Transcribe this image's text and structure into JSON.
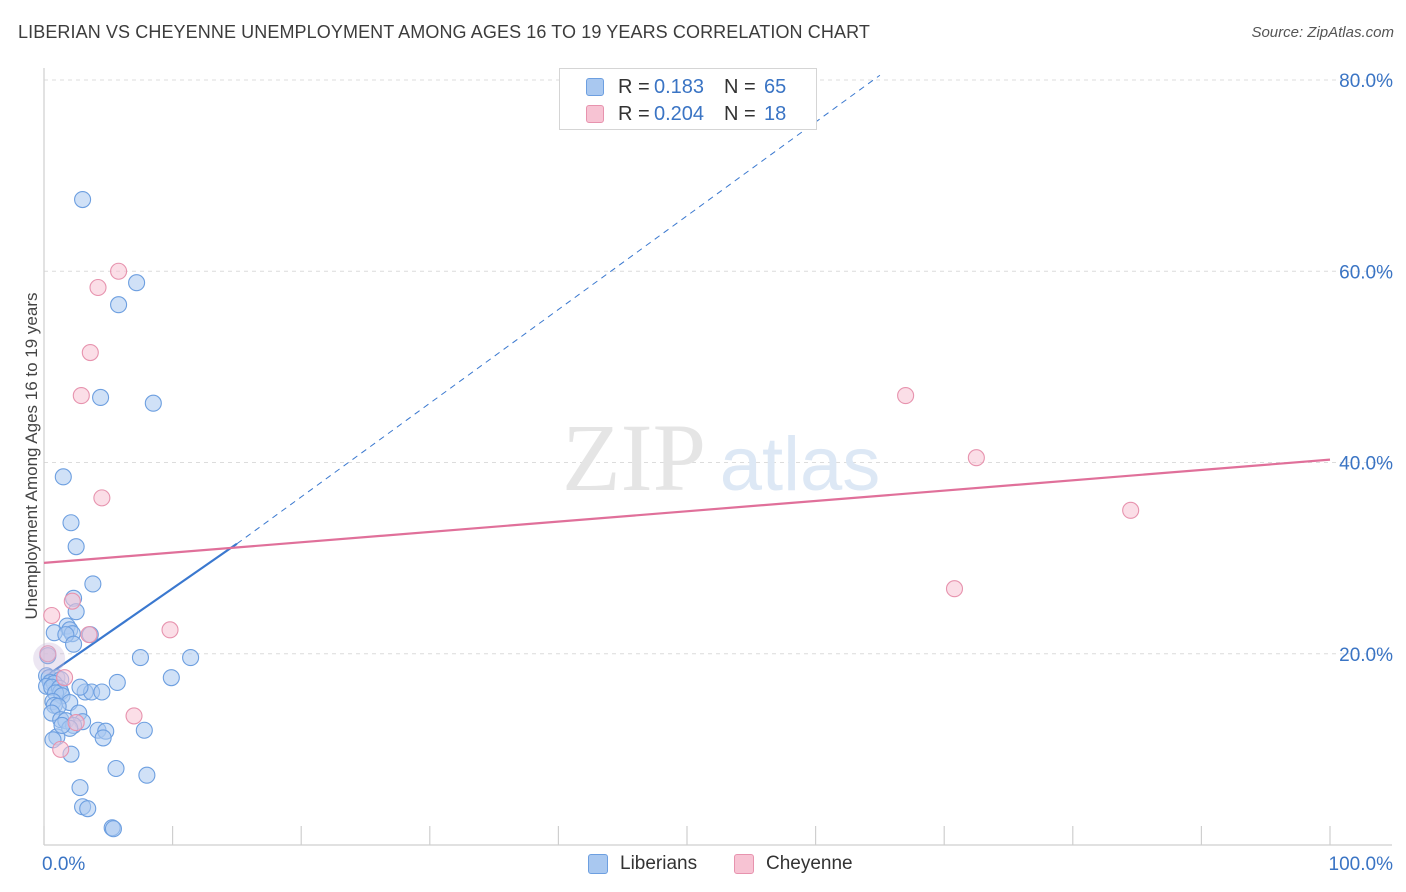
{
  "title": "LIBERIAN VS CHEYENNE UNEMPLOYMENT AMONG AGES 16 TO 19 YEARS CORRELATION CHART",
  "source": "Source: ZipAtlas.com",
  "watermark": {
    "zip": "ZIP",
    "atlas": "atlas"
  },
  "legend": {
    "rows": [
      {
        "r_label": "R =",
        "r_value": "0.183",
        "n_label": "N =",
        "n_value": "65",
        "color": "#a9c8f0",
        "border": "#6d9fe0"
      },
      {
        "r_label": "R =",
        "r_value": "0.204",
        "n_label": "N =",
        "n_value": "18",
        "color": "#f7c3d3",
        "border": "#e793ae"
      }
    ]
  },
  "bottom_legend": [
    "Liberians",
    "Cheyenne"
  ],
  "chart_data": {
    "type": "scatter",
    "title": "LIBERIAN VS CHEYENNE UNEMPLOYMENT AMONG AGES 16 TO 19 YEARS CORRELATION CHART",
    "xlabel": "",
    "ylabel": "Unemployment Among Ages 16 to 19 years",
    "xlim": [
      0,
      100
    ],
    "ylim": [
      0,
      80
    ],
    "x_tick_labels": [
      "0.0%",
      "100.0%"
    ],
    "y_ticks": [
      20,
      40,
      60,
      80
    ],
    "y_tick_labels": [
      "20.0%",
      "40.0%",
      "60.0%",
      "80.0%"
    ],
    "grid": true,
    "series": [
      {
        "name": "Liberians",
        "color": "#6d9fe0",
        "fill": "#a9c8f0",
        "points": [
          [
            3.0,
            67.5
          ],
          [
            7.2,
            58.8
          ],
          [
            5.8,
            56.5
          ],
          [
            4.4,
            46.8
          ],
          [
            8.5,
            46.2
          ],
          [
            1.5,
            38.5
          ],
          [
            2.1,
            33.7
          ],
          [
            2.5,
            31.2
          ],
          [
            3.8,
            27.3
          ],
          [
            2.3,
            25.8
          ],
          [
            2.5,
            24.4
          ],
          [
            1.8,
            22.9
          ],
          [
            2.0,
            22.5
          ],
          [
            0.8,
            22.2
          ],
          [
            2.2,
            22.1
          ],
          [
            3.6,
            22.0
          ],
          [
            1.7,
            22.0
          ],
          [
            2.3,
            21.0
          ],
          [
            7.5,
            19.6
          ],
          [
            11.4,
            19.6
          ],
          [
            0.2,
            17.7
          ],
          [
            0.4,
            17.5
          ],
          [
            1.0,
            17.5
          ],
          [
            1.3,
            17.3
          ],
          [
            0.5,
            17.0
          ],
          [
            0.8,
            16.9
          ],
          [
            0.2,
            16.6
          ],
          [
            0.6,
            16.5
          ],
          [
            1.2,
            16.4
          ],
          [
            9.9,
            17.5
          ],
          [
            5.7,
            17.0
          ],
          [
            1.3,
            16.0
          ],
          [
            3.2,
            16.0
          ],
          [
            3.7,
            16.0
          ],
          [
            4.5,
            16.0
          ],
          [
            0.9,
            15.9
          ],
          [
            1.4,
            15.6
          ],
          [
            0.7,
            15.0
          ],
          [
            2.0,
            14.9
          ],
          [
            0.8,
            14.6
          ],
          [
            1.1,
            14.5
          ],
          [
            0.6,
            13.8
          ],
          [
            2.7,
            13.8
          ],
          [
            1.3,
            13.1
          ],
          [
            1.7,
            13.0
          ],
          [
            3.0,
            12.9
          ],
          [
            2.3,
            12.5
          ],
          [
            2.0,
            12.2
          ],
          [
            4.2,
            12.0
          ],
          [
            4.8,
            11.9
          ],
          [
            7.8,
            12.0
          ],
          [
            1.0,
            11.3
          ],
          [
            4.6,
            11.2
          ],
          [
            2.1,
            9.5
          ],
          [
            5.6,
            8.0
          ],
          [
            8.0,
            7.3
          ],
          [
            2.8,
            6.0
          ],
          [
            3.0,
            4.0
          ],
          [
            3.4,
            3.8
          ],
          [
            5.3,
            1.8
          ],
          [
            5.4,
            1.7
          ],
          [
            0.3,
            19.8
          ],
          [
            1.4,
            12.5
          ],
          [
            0.7,
            11.0
          ],
          [
            2.8,
            16.5
          ]
        ]
      },
      {
        "name": "Cheyenne",
        "color": "#e793ae",
        "fill": "#f7c3d3",
        "points": [
          [
            5.8,
            60.0
          ],
          [
            4.2,
            58.3
          ],
          [
            3.6,
            51.5
          ],
          [
            2.9,
            47.0
          ],
          [
            4.5,
            36.3
          ],
          [
            2.2,
            25.5
          ],
          [
            0.6,
            24.0
          ],
          [
            3.5,
            22.0
          ],
          [
            9.8,
            22.5
          ],
          [
            0.3,
            20.0
          ],
          [
            1.6,
            17.5
          ],
          [
            1.3,
            10.0
          ],
          [
            7.0,
            13.5
          ],
          [
            2.5,
            12.8
          ],
          [
            67.0,
            47.0
          ],
          [
            72.5,
            40.5
          ],
          [
            84.5,
            35.0
          ],
          [
            70.8,
            26.8
          ]
        ]
      }
    ],
    "trend_lines": [
      {
        "series": "Liberians",
        "style": "solid",
        "from": [
          0,
          17.5
        ],
        "to": [
          15,
          31.5
        ]
      },
      {
        "series": "Liberians",
        "style": "dashed",
        "from": [
          15,
          31.5
        ],
        "to": [
          65,
          80.5
        ]
      },
      {
        "series": "Cheyenne",
        "style": "solid",
        "from": [
          0,
          29.5
        ],
        "to": [
          100,
          40.3
        ]
      }
    ]
  }
}
